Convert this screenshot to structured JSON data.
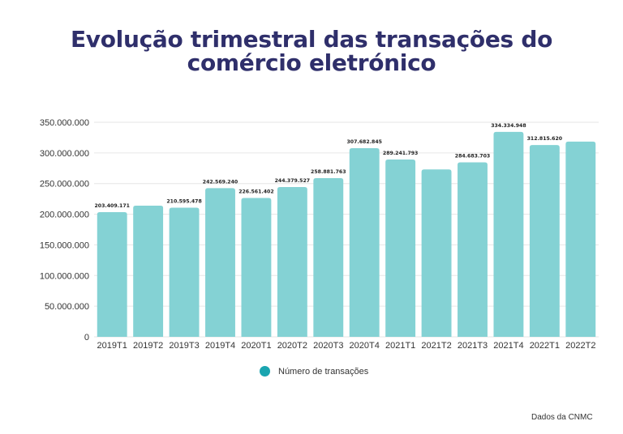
{
  "title_line1": "Evolução trimestral das transações do",
  "title_line2": "comércio eletrónico",
  "legend_label": "Número de transações",
  "source": "Dados da CNMC",
  "colors": {
    "bar": "#84d2d4",
    "legend": "#1aa5b0",
    "title": "#2f2f6b",
    "grid": "#e6e6e6"
  },
  "chart_data": {
    "type": "bar",
    "categories": [
      "2019T1",
      "2019T2",
      "2019T3",
      "2019T4",
      "2020T1",
      "2020T2",
      "2020T3",
      "2020T4",
      "2021T1",
      "2021T2",
      "2021T3",
      "2021T4",
      "2022T1",
      "2022T2"
    ],
    "series": [
      {
        "name": "Número de transações",
        "values": [
          203409171,
          214000000,
          210595478,
          242569240,
          226561402,
          244379527,
          258881763,
          307682845,
          289241793,
          273000000,
          284683703,
          334334948,
          312815620,
          318500000
        ]
      }
    ],
    "data_labels": [
      "203.409.171",
      "",
      "210.595.478",
      "242.569.240",
      "226.561.402",
      "244.379.527",
      "258.881.763",
      "307.682.845",
      "289.241.793",
      "",
      "284.683.703",
      "334.334.948",
      "312.815.620",
      ""
    ],
    "y_ticks": [
      0,
      50000000,
      100000000,
      150000000,
      200000000,
      250000000,
      300000000,
      350000000
    ],
    "y_tick_labels": [
      "0",
      "50.000.000",
      "100.000.000",
      "150.000.000",
      "200.000.000",
      "250.000.000",
      "300.000.000",
      "350.000.000"
    ],
    "ylim": [
      0,
      350000000
    ],
    "grid": true,
    "legend_position": "bottom",
    "xlabel": "",
    "ylabel": ""
  }
}
